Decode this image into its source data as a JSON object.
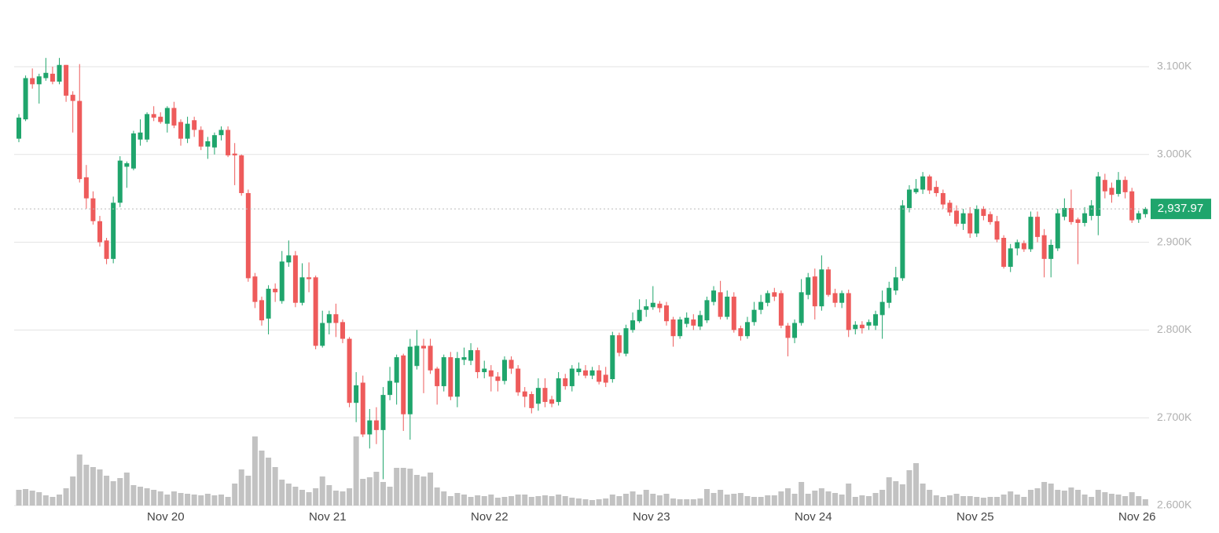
{
  "chart_data": {
    "type": "candlestick",
    "categories": [
      null,
      null,
      null,
      null,
      null,
      null,
      null,
      null,
      null,
      null,
      null,
      null,
      null,
      null,
      null,
      null,
      null,
      null,
      null,
      null,
      null,
      null,
      "Nov 20",
      null,
      null,
      null,
      null,
      null,
      null,
      null,
      null,
      null,
      null,
      null,
      null,
      null,
      null,
      null,
      null,
      null,
      null,
      null,
      null,
      null,
      null,
      null,
      "Nov 21",
      null,
      null,
      null,
      null,
      null,
      null,
      null,
      null,
      null,
      null,
      null,
      null,
      null,
      null,
      null,
      null,
      null,
      null,
      null,
      null,
      null,
      null,
      null,
      "Nov 22",
      null,
      null,
      null,
      null,
      null,
      null,
      null,
      null,
      null,
      null,
      null,
      null,
      null,
      null,
      null,
      null,
      null,
      null,
      null,
      null,
      null,
      null,
      null,
      "Nov 23",
      null,
      null,
      null,
      null,
      null,
      null,
      null,
      null,
      null,
      null,
      null,
      null,
      null,
      null,
      null,
      null,
      null,
      null,
      null,
      null,
      null,
      null,
      null,
      "Nov 24",
      null,
      null,
      null,
      null,
      null,
      null,
      null,
      null,
      null,
      null,
      null,
      null,
      null,
      null,
      null,
      null,
      null,
      null,
      null,
      null,
      null,
      null,
      null,
      "Nov 25",
      null,
      null,
      null,
      null,
      null,
      null,
      null,
      null,
      null,
      null,
      null,
      null,
      null,
      null,
      null,
      null,
      null,
      null,
      null,
      null,
      null,
      null,
      null,
      "Nov 26",
      null
    ],
    "open": [
      3018,
      3040,
      3087,
      3080,
      3087,
      3092,
      3083,
      3102,
      3068,
      3061,
      2974,
      2950,
      2924,
      2902,
      2881,
      2945,
      2986,
      2984,
      3017,
      3017,
      3046,
      3043,
      3035,
      3053,
      3037,
      3018,
      3039,
      3028,
      3009,
      3008,
      3022,
      3028,
      3001,
      2999,
      2956,
      2861,
      2834,
      2813,
      2847,
      2833,
      2877,
      2885,
      2831,
      2860,
      2860,
      2782,
      2808,
      2818,
      2809,
      2790,
      2717,
      2740,
      2681,
      2697,
      2686,
      2726,
      2740,
      2771,
      2704,
      2759,
      2782,
      2782,
      2756,
      2736,
      2769,
      2724,
      2766,
      2765,
      2777,
      2752,
      2754,
      2747,
      2742,
      2766,
      2756,
      2730,
      2727,
      2716,
      2734,
      2721,
      2718,
      2745,
      2736,
      2752,
      2754,
      2748,
      2754,
      2749,
      2744,
      2794,
      2773,
      2800,
      2810,
      2823,
      2826,
      2830,
      2828,
      2812,
      2793,
      2807,
      2812,
      2804,
      2811,
      2832,
      2843,
      2815,
      2838,
      2802,
      2793,
      2809,
      2823,
      2831,
      2843,
      2842,
      2805,
      2791,
      2808,
      2840,
      2861,
      2827,
      2869,
      2842,
      2831,
      2842,
      2801,
      2806,
      2805,
      2805,
      2817,
      2831,
      2845,
      2859,
      2939,
      2957,
      2960,
      2975,
      2963,
      2956,
      2945,
      2936,
      2921,
      2933,
      2910,
      2938,
      2932,
      2924,
      2905,
      2872,
      2893,
      2899,
      2892,
      2929,
      2908,
      2881,
      2893,
      2929,
      2939,
      2926,
      2922,
      2930,
      2930,
      2971,
      2962,
      2955,
      2971,
      2958,
      2926,
      2932
    ],
    "high": [
      3046,
      3090,
      3098,
      3092,
      3110,
      3100,
      3110,
      3102,
      3072,
      3103,
      2988,
      2958,
      2930,
      2905,
      2952,
      2998,
      2992,
      3027,
      3040,
      3048,
      3055,
      3048,
      3055,
      3060,
      3040,
      3043,
      3043,
      3032,
      3020,
      3025,
      3032,
      3032,
      3013,
      3000,
      2960,
      2865,
      2838,
      2851,
      2853,
      2890,
      2902,
      2890,
      2876,
      2877,
      2862,
      2822,
      2822,
      2830,
      2812,
      2792,
      2752,
      2748,
      2710,
      2712,
      2735,
      2758,
      2772,
      2773,
      2790,
      2800,
      2790,
      2790,
      2758,
      2772,
      2775,
      2775,
      2780,
      2785,
      2780,
      2765,
      2760,
      2752,
      2770,
      2770,
      2760,
      2735,
      2730,
      2745,
      2745,
      2725,
      2752,
      2750,
      2760,
      2763,
      2760,
      2758,
      2760,
      2758,
      2798,
      2797,
      2806,
      2820,
      2835,
      2835,
      2850,
      2833,
      2832,
      2815,
      2815,
      2820,
      2818,
      2822,
      2838,
      2850,
      2856,
      2845,
      2843,
      2805,
      2815,
      2832,
      2840,
      2845,
      2848,
      2845,
      2808,
      2812,
      2858,
      2865,
      2870,
      2885,
      2872,
      2847,
      2845,
      2846,
      2810,
      2810,
      2812,
      2822,
      2845,
      2855,
      2872,
      2948,
      2965,
      2972,
      2980,
      2977,
      2970,
      2960,
      2948,
      2942,
      2938,
      2940,
      2942,
      2941,
      2935,
      2930,
      2908,
      2898,
      2903,
      2902,
      2935,
      2935,
      2915,
      2903,
      2938,
      2950,
      2960,
      2928,
      2940,
      2948,
      2980,
      2978,
      2968,
      2980,
      2975,
      2962,
      2936,
      2940
    ],
    "low": [
      3014,
      3038,
      3075,
      3058,
      3084,
      3080,
      3080,
      3060,
      3025,
      2968,
      2938,
      2920,
      2895,
      2875,
      2876,
      2940,
      2962,
      2982,
      3010,
      3014,
      3038,
      3035,
      3025,
      3030,
      3010,
      3013,
      3020,
      3005,
      2995,
      3000,
      3016,
      2997,
      2965,
      2953,
      2855,
      2825,
      2805,
      2795,
      2832,
      2830,
      2872,
      2826,
      2828,
      2843,
      2778,
      2780,
      2795,
      2792,
      2785,
      2712,
      2695,
      2678,
      2665,
      2670,
      2630,
      2720,
      2715,
      2685,
      2675,
      2755,
      2728,
      2750,
      2715,
      2730,
      2720,
      2712,
      2760,
      2760,
      2745,
      2745,
      2730,
      2730,
      2738,
      2750,
      2725,
      2712,
      2705,
      2708,
      2712,
      2712,
      2714,
      2732,
      2730,
      2748,
      2745,
      2744,
      2738,
      2735,
      2740,
      2770,
      2770,
      2797,
      2808,
      2815,
      2823,
      2820,
      2805,
      2781,
      2790,
      2803,
      2800,
      2800,
      2808,
      2828,
      2812,
      2812,
      2797,
      2788,
      2790,
      2805,
      2818,
      2827,
      2833,
      2802,
      2770,
      2785,
      2805,
      2835,
      2812,
      2822,
      2838,
      2826,
      2825,
      2792,
      2795,
      2796,
      2800,
      2800,
      2790,
      2825,
      2840,
      2856,
      2934,
      2955,
      2955,
      2955,
      2952,
      2938,
      2930,
      2918,
      2914,
      2905,
      2906,
      2925,
      2920,
      2900,
      2870,
      2866,
      2885,
      2889,
      2889,
      2900,
      2860,
      2860,
      2890,
      2925,
      2920,
      2875,
      2918,
      2925,
      2908,
      2950,
      2945,
      2952,
      2950,
      2922,
      2922,
      2928
    ],
    "close": [
      3042,
      3087,
      3080,
      3089,
      3093,
      3083,
      3102,
      3067,
      3061,
      2972,
      2950,
      2924,
      2900,
      2881,
      2945,
      2993,
      2990,
      3024,
      3025,
      3046,
      3042,
      3037,
      3053,
      3033,
      3018,
      3035,
      3028,
      3009,
      3015,
      3022,
      3028,
      2999,
      2999,
      2956,
      2859,
      2832,
      2811,
      2847,
      2843,
      2878,
      2885,
      2831,
      2860,
      2858,
      2782,
      2808,
      2818,
      2808,
      2790,
      2717,
      2737,
      2681,
      2697,
      2686,
      2726,
      2742,
      2769,
      2704,
      2781,
      2782,
      2779,
      2754,
      2736,
      2769,
      2724,
      2768,
      2769,
      2777,
      2752,
      2756,
      2747,
      2742,
      2766,
      2756,
      2729,
      2724,
      2711,
      2734,
      2718,
      2716,
      2745,
      2736,
      2756,
      2756,
      2748,
      2754,
      2741,
      2740,
      2794,
      2774,
      2802,
      2811,
      2823,
      2827,
      2831,
      2825,
      2810,
      2793,
      2812,
      2814,
      2805,
      2817,
      2834,
      2845,
      2815,
      2838,
      2800,
      2793,
      2809,
      2823,
      2832,
      2842,
      2838,
      2805,
      2791,
      2808,
      2843,
      2860,
      2827,
      2869,
      2840,
      2831,
      2842,
      2800,
      2806,
      2802,
      2809,
      2818,
      2832,
      2848,
      2860,
      2942,
      2960,
      2961,
      2975,
      2959,
      2956,
      2943,
      2934,
      2921,
      2933,
      2910,
      2938,
      2930,
      2923,
      2903,
      2872,
      2893,
      2900,
      2892,
      2929,
      2906,
      2881,
      2897,
      2933,
      2939,
      2923,
      2922,
      2933,
      2942,
      2975,
      2958,
      2954,
      2971,
      2957,
      2925,
      2933,
      2937.97
    ],
    "volume": [
      20,
      21,
      19,
      17,
      13,
      11,
      14,
      22,
      37,
      65,
      52,
      49,
      46,
      38,
      31,
      35,
      42,
      26,
      24,
      22,
      20,
      18,
      14,
      18,
      16,
      15,
      14,
      13,
      15,
      13,
      14,
      11,
      28,
      46,
      38,
      88,
      70,
      61,
      49,
      33,
      28,
      24,
      20,
      17,
      22,
      37,
      26,
      19,
      18,
      22,
      88,
      34,
      36,
      43,
      30,
      24,
      48,
      48,
      47,
      39,
      37,
      42,
      23,
      18,
      12,
      16,
      14,
      11,
      13,
      12,
      14,
      10,
      11,
      12,
      14,
      14,
      11,
      12,
      13,
      12,
      14,
      12,
      10,
      9,
      8,
      7,
      8,
      9,
      14,
      12,
      15,
      18,
      14,
      20,
      15,
      13,
      15,
      9,
      8,
      8,
      8,
      9,
      21,
      16,
      20,
      14,
      15,
      16,
      12,
      11,
      11,
      13,
      13,
      18,
      22,
      15,
      30,
      15,
      19,
      22,
      18,
      16,
      14,
      28,
      11,
      13,
      12,
      16,
      20,
      36,
      31,
      27,
      45,
      54,
      28,
      20,
      13,
      11,
      13,
      15,
      12,
      12,
      11,
      10,
      11,
      11,
      14,
      18,
      14,
      11,
      20,
      22,
      30,
      28,
      20,
      19,
      23,
      20,
      14,
      11,
      20,
      17,
      15,
      14,
      12,
      17,
      12,
      8
    ],
    "ylim": [
      2600,
      3176
    ],
    "yticks": [
      {
        "value": 2600,
        "label": "2.600K"
      },
      {
        "value": 2700,
        "label": "2.700K"
      },
      {
        "value": 2800,
        "label": "2.800K"
      },
      {
        "value": 2900,
        "label": "2.900K"
      },
      {
        "value": 3000,
        "label": "3.000K"
      },
      {
        "value": 3100,
        "label": "3.100K"
      }
    ],
    "last_price": {
      "value": 2937.97,
      "label": "2,937.97"
    },
    "up_color": "#1fa56c",
    "down_color": "#ee5b5b",
    "volume_color": "#c2c2c2",
    "grid": true
  }
}
